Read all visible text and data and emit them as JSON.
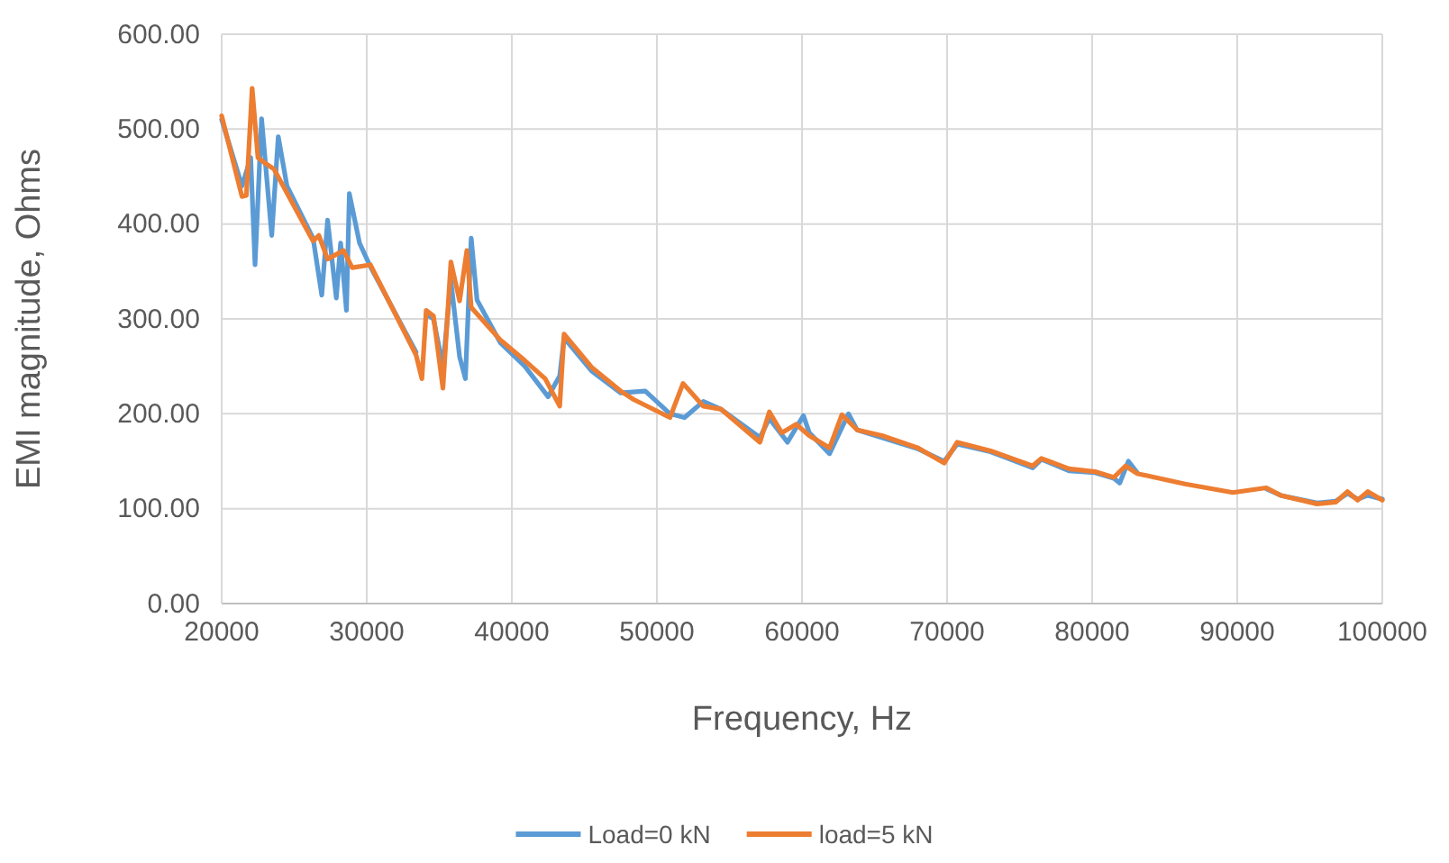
{
  "chart_data": {
    "type": "line",
    "xlabel": "Frequency, Hz",
    "ylabel": "EMI magnitude, Ohms",
    "xlim": [
      20000,
      100000
    ],
    "xticks": [
      20000,
      30000,
      40000,
      50000,
      60000,
      70000,
      80000,
      90000,
      100000
    ],
    "ylim": [
      0,
      600
    ],
    "yticks": [
      {
        "value": 0,
        "label": "0.00"
      },
      {
        "value": 100,
        "label": "100.00"
      },
      {
        "value": 200,
        "label": "200.00"
      },
      {
        "value": 300,
        "label": "300.00"
      },
      {
        "value": 400,
        "label": "400.00"
      },
      {
        "value": 500,
        "label": "500.00"
      },
      {
        "value": 600,
        "label": "600.00"
      }
    ],
    "grid": true,
    "legend": "bottom",
    "marker": "none",
    "line_style": "solid",
    "series": [
      {
        "name": "Load=0 kN",
        "color": "#5b9bd5",
        "x": [
          20000,
          21400,
          22000,
          22300,
          22750,
          23450,
          23900,
          24500,
          26300,
          26900,
          27300,
          27900,
          28200,
          28600,
          28800,
          29500,
          30250,
          33400,
          33800,
          34100,
          34600,
          35250,
          35800,
          36400,
          36800,
          37200,
          37600,
          39200,
          40900,
          42500,
          43300,
          43600,
          45500,
          47500,
          49200,
          50900,
          51900,
          53200,
          54400,
          57100,
          57750,
          59000,
          60100,
          60500,
          61900,
          63200,
          63800,
          65500,
          68000,
          69800,
          70700,
          73000,
          75900,
          76500,
          78400,
          80200,
          81500,
          81900,
          82500,
          83100,
          86400,
          89700,
          92000,
          93000,
          95500,
          96800,
          97600,
          98300,
          99000,
          100000
        ],
        "values": [
          510,
          440,
          470,
          357,
          511,
          388,
          492,
          440,
          385,
          325,
          404,
          322,
          380,
          309,
          432,
          380,
          355,
          265,
          null,
          305,
          300,
          250,
          340,
          260,
          237,
          385,
          320,
          275,
          250,
          218,
          240,
          280,
          245,
          222,
          224,
          200,
          196,
          213,
          205,
          175,
          195,
          170,
          198,
          180,
          158,
          200,
          183,
          175,
          163,
          150,
          168,
          160,
          143,
          152,
          140,
          138,
          132,
          127,
          150,
          138,
          null,
          null,
          121,
          114,
          106,
          108,
          116,
          110,
          114,
          110
        ]
      },
      {
        "name": "load=5 kN",
        "color": "#ed7d31",
        "x": [
          20000,
          21400,
          21700,
          22100,
          22500,
          23000,
          23600,
          26300,
          26700,
          27300,
          28400,
          29000,
          30250,
          33400,
          33800,
          34100,
          34600,
          35250,
          35800,
          36400,
          36900,
          37200,
          39200,
          40900,
          42300,
          43300,
          43600,
          45500,
          47500,
          48400,
          50900,
          51800,
          53200,
          54400,
          57100,
          57750,
          58600,
          59600,
          60500,
          61900,
          62750,
          63800,
          65500,
          68000,
          69800,
          70700,
          73000,
          75900,
          76500,
          78400,
          80200,
          81500,
          82300,
          83100,
          86400,
          89700,
          92000,
          93000,
          95500,
          96800,
          97600,
          98300,
          99000,
          100000
        ],
        "values": [
          514,
          429,
          430,
          543,
          470,
          464,
          458,
          382,
          388,
          363,
          372,
          354,
          357,
          262,
          237,
          309,
          303,
          227,
          360,
          319,
          372,
          312,
          278,
          256,
          237,
          208,
          284,
          249,
          224,
          215,
          196,
          232,
          208,
          205,
          170,
          202,
          180,
          189,
          177,
          164,
          199,
          183,
          177,
          164,
          148,
          170,
          161,
          145,
          153,
          142,
          139,
          133,
          145,
          137,
          126,
          117,
          122,
          114,
          105,
          107,
          118,
          109,
          118,
          109
        ]
      }
    ]
  }
}
